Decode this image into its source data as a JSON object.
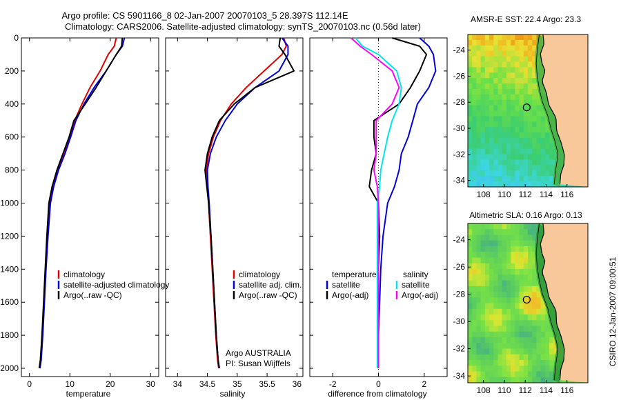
{
  "figure": {
    "title_line1": "Argo profile: CS 5901166_8 02-Jan-2007 20070103_5 28.397S 112.14E",
    "title_line2": "Climatology: CARS2006. Satellite-adjusted climatology: synTS_20070103.nc (0.56d later)",
    "side_label": "CSIRO 12-Jan-2007 09:00:51"
  },
  "colors": {
    "red": "#e00000",
    "blue": "#0000e0",
    "black": "#000000",
    "cyan": "#00e5ee",
    "magenta": "#ff00ff",
    "land": "#f8c89a",
    "coast": "#000000"
  },
  "chart_data": [
    {
      "type": "line",
      "xlabel": "temperature",
      "ylabel": "",
      "xlim": [
        -2,
        32
      ],
      "ylim": [
        2050,
        0
      ],
      "xticks": [
        0,
        10,
        20,
        30
      ],
      "yticks": [
        0,
        200,
        400,
        600,
        800,
        1000,
        1200,
        1400,
        1600,
        1800,
        2000
      ],
      "y_reversed": true,
      "legend": {
        "position": "lower-right",
        "entries": [
          "climatology",
          "satellite-adjusted climatology",
          "Argo(..raw -QC)"
        ]
      },
      "series": [
        {
          "name": "climatology",
          "color": "red",
          "x": [
            21.5,
            21.0,
            19.5,
            17.5,
            15.0,
            13.0,
            11.2,
            10.0,
            8.6,
            7.0,
            5.8,
            5.0,
            4.4,
            4.0,
            3.6,
            3.2,
            2.8,
            2.5
          ],
          "y": [
            0,
            50,
            100,
            200,
            300,
            400,
            500,
            600,
            700,
            800,
            900,
            1000,
            1200,
            1400,
            1600,
            1800,
            1950,
            2000
          ]
        },
        {
          "name": "satellite-adjusted climatology",
          "color": "blue",
          "x": [
            23.5,
            23.0,
            21.5,
            19.0,
            16.0,
            13.5,
            11.5,
            10.2,
            8.8,
            7.2,
            6.0,
            5.2,
            4.6,
            4.1,
            3.7,
            3.3,
            2.9,
            2.6
          ],
          "y": [
            0,
            50,
            100,
            200,
            300,
            400,
            500,
            600,
            700,
            800,
            900,
            1000,
            1200,
            1400,
            1600,
            1800,
            1950,
            2000
          ]
        },
        {
          "name": "Argo(..raw -QC)",
          "color": "black",
          "x": [
            23.0,
            22.8,
            21.5,
            19.0,
            16.5,
            13.8,
            11.0,
            9.8,
            8.3,
            6.8,
            5.6,
            4.8,
            4.3,
            3.9,
            3.5,
            3.1,
            2.7,
            2.4
          ],
          "y": [
            0,
            50,
            100,
            200,
            300,
            400,
            500,
            600,
            700,
            800,
            900,
            1000,
            1200,
            1400,
            1600,
            1800,
            1950,
            2000
          ]
        }
      ]
    },
    {
      "type": "line",
      "xlabel": "salinity",
      "ylabel": "",
      "xlim": [
        33.8,
        36.1
      ],
      "ylim": [
        2050,
        0
      ],
      "xticks": [
        34,
        34.5,
        35,
        35.5,
        36
      ],
      "y_reversed": true,
      "legend": {
        "position": "lower-right",
        "entries": [
          "climatology",
          "satellite adj. clim.",
          "Argo(..raw -QC)"
        ]
      },
      "annotations": [
        "Argo AUSTRALIA",
        "PI: Susan Wijffels"
      ],
      "series": [
        {
          "name": "climatology",
          "color": "red",
          "x": [
            35.78,
            35.82,
            35.75,
            35.45,
            35.15,
            34.9,
            34.72,
            34.6,
            34.52,
            34.48,
            34.5,
            34.52,
            34.55,
            34.58,
            34.61,
            34.64,
            34.67,
            34.69
          ],
          "y": [
            0,
            50,
            100,
            200,
            300,
            400,
            500,
            600,
            700,
            800,
            900,
            1000,
            1200,
            1400,
            1600,
            1800,
            1950,
            2000
          ]
        },
        {
          "name": "satellite adj. clim.",
          "color": "blue",
          "x": [
            35.75,
            35.85,
            35.85,
            35.7,
            35.3,
            35.0,
            34.8,
            34.65,
            34.55,
            34.5,
            34.51,
            34.53,
            34.56,
            34.59,
            34.62,
            34.65,
            34.68,
            34.7
          ],
          "y": [
            0,
            50,
            100,
            200,
            300,
            400,
            500,
            600,
            700,
            800,
            900,
            1000,
            1200,
            1400,
            1600,
            1800,
            1950,
            2000
          ]
        },
        {
          "name": "Argo(..raw -QC)",
          "color": "black",
          "x": [
            35.72,
            35.7,
            35.8,
            35.95,
            35.3,
            34.95,
            34.7,
            34.58,
            34.5,
            34.46,
            34.49,
            34.52,
            34.56,
            34.59,
            34.62,
            34.65,
            34.68,
            34.7
          ],
          "y": [
            0,
            50,
            100,
            200,
            300,
            400,
            500,
            600,
            700,
            800,
            900,
            1000,
            1200,
            1400,
            1600,
            1800,
            1950,
            2000
          ]
        }
      ]
    },
    {
      "type": "line",
      "xlabel": "difference from climatology",
      "ylabel": "",
      "xlim": [
        -3.0,
        3.0
      ],
      "ylim": [
        2050,
        0
      ],
      "xticks": [
        -2,
        0,
        2
      ],
      "y_reversed": true,
      "zero_line": true,
      "legend": {
        "position": "lower-center",
        "headers": [
          "temperature",
          "salinity"
        ],
        "entries": [
          "satellite",
          "Argo(-adj)",
          "satellite",
          "Argo(-adj)"
        ]
      },
      "series": [
        {
          "name": "satellite",
          "group": "temperature",
          "color": "blue",
          "x": [
            1.8,
            2.2,
            2.4,
            2.5,
            2.2,
            1.7,
            1.5,
            1.3,
            1.0,
            0.9,
            0.7,
            0.4,
            0.2,
            0.1,
            0.05,
            0.0,
            0.0,
            0.0
          ],
          "y": [
            0,
            50,
            100,
            200,
            300,
            400,
            500,
            600,
            700,
            800,
            900,
            1000,
            1200,
            1400,
            1600,
            1800,
            1950,
            2000
          ]
        },
        {
          "name": "Argo(-adj)",
          "group": "temperature",
          "color": "black",
          "x": [
            0.6,
            1.8,
            2.1,
            1.8,
            1.4,
            0.9,
            -0.2,
            -0.2,
            -0.1,
            -0.3,
            -0.4,
            0.0,
            0.05,
            0.0,
            0.0,
            0.0,
            0.0,
            0.0
          ],
          "y": [
            0,
            50,
            100,
            200,
            300,
            400,
            500,
            600,
            700,
            800,
            900,
            1000,
            1200,
            1400,
            1600,
            1800,
            1950,
            2000
          ]
        },
        {
          "name": "satellite",
          "group": "salinity",
          "color": "cyan",
          "x": [
            -1.0,
            -0.7,
            0.0,
            0.8,
            1.0,
            0.9,
            0.6,
            0.4,
            0.25,
            0.1,
            0.05,
            -0.05,
            -0.05,
            -0.05,
            -0.05,
            -0.05,
            -0.05,
            -0.05
          ],
          "y": [
            0,
            50,
            100,
            200,
            300,
            400,
            500,
            600,
            700,
            800,
            900,
            1000,
            1200,
            1400,
            1600,
            1800,
            1950,
            2000
          ]
        },
        {
          "name": "Argo(-adj)",
          "group": "salinity",
          "color": "magenta",
          "x": [
            -1.2,
            -0.8,
            -0.3,
            0.6,
            0.9,
            0.6,
            -0.1,
            -0.1,
            -0.1,
            -0.2,
            -0.05,
            0.0,
            0.0,
            0.0,
            0.0,
            0.0,
            0.0,
            0.0
          ],
          "y": [
            0,
            50,
            100,
            200,
            300,
            400,
            500,
            600,
            700,
            800,
            900,
            1000,
            1200,
            1400,
            1600,
            1800,
            1950,
            2000
          ]
        }
      ]
    },
    {
      "type": "heatmap",
      "title": "AMSR-E SST: 22.4 Argo: 23.3",
      "xlim": [
        106.5,
        118.0
      ],
      "ylim": [
        -34.5,
        -22.8
      ],
      "xticks": [
        108,
        110,
        112,
        114,
        116
      ],
      "yticks": [
        -24,
        -26,
        -28,
        -30,
        -32,
        -34
      ],
      "marker": {
        "lon": 112.14,
        "lat": -28.397
      },
      "field": "sst"
    },
    {
      "type": "heatmap",
      "title": "Altimetric SLA: 0.16 Argo: 0.13",
      "xlim": [
        106.5,
        118.0
      ],
      "ylim": [
        -34.5,
        -22.8
      ],
      "xticks": [
        108,
        110,
        112,
        114,
        116
      ],
      "yticks": [
        -24,
        -26,
        -28,
        -30,
        -32,
        -34
      ],
      "marker": {
        "lon": 112.14,
        "lat": -28.397
      },
      "field": "sla"
    }
  ]
}
